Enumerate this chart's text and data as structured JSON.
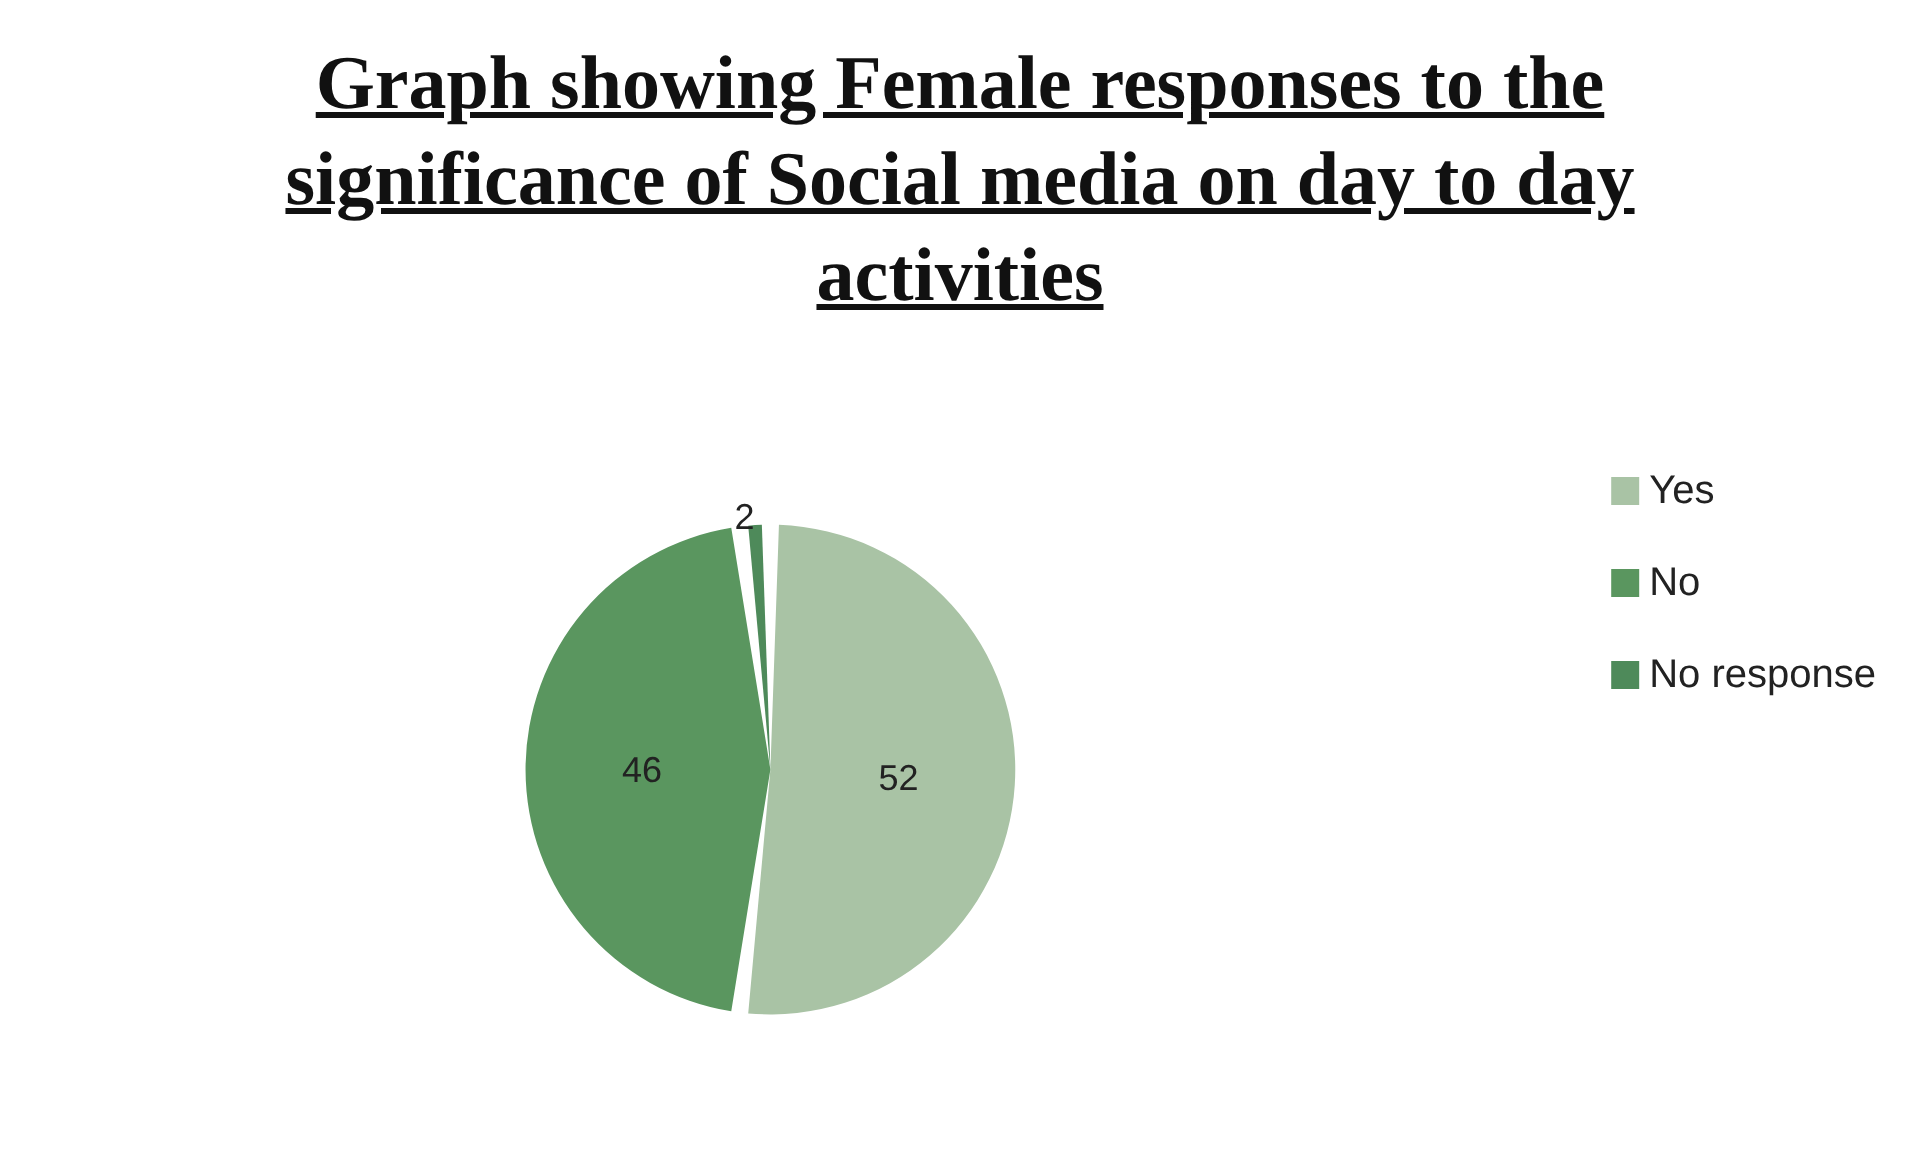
{
  "chart_data": {
    "type": "pie",
    "title": "Graph showing Female responses to the significance of Social media on day to day activities",
    "categories": [
      "Yes",
      "No",
      "No response"
    ],
    "values": [
      52,
      46,
      2
    ],
    "colors": [
      "#a9c3a5",
      "#5a965f",
      "#4e8a5a"
    ],
    "data_labels": true,
    "legend": "right"
  }
}
